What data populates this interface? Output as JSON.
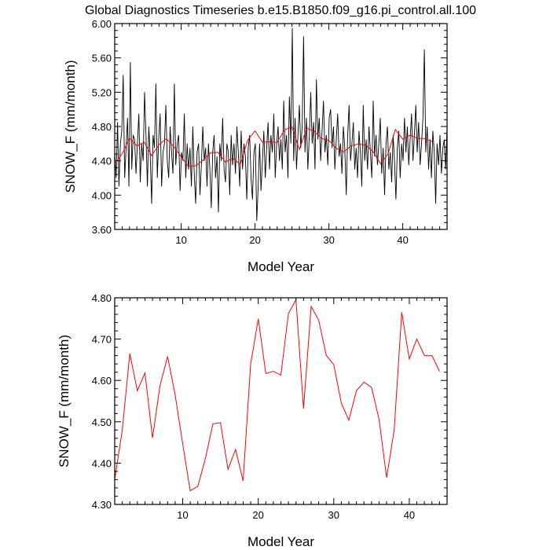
{
  "title": "Global Diagnostics Timeseries b.e15.B1850.f09_g16.pi_control.all.100",
  "colors": {
    "monthly": "#000000",
    "annual": "#ff0000"
  },
  "chart_data": [
    {
      "type": "line",
      "xlabel": "Model Year",
      "ylabel": "SNOW_F (mm/month)",
      "xlim": [
        1,
        46
      ],
      "ylim": [
        3.6,
        6.0
      ],
      "xticks": [
        "10",
        "20",
        "30",
        "40"
      ],
      "yticks": [
        "3.60",
        "4.00",
        "4.40",
        "4.80",
        "5.20",
        "5.60",
        "6.00"
      ],
      "series": [
        {
          "key": "monthly",
          "values": [
            4.5,
            4.2,
            4.85,
            4.1,
            4.6,
            4.75,
            5.4,
            4.2,
            4.55,
            4.9,
            4.1,
            5.55,
            4.3,
            4.7,
            4.65,
            4.25,
            4.6,
            4.95,
            4.15,
            4.6,
            4.4,
            5.2,
            4.7,
            4.1,
            4.8,
            4.45,
            3.9,
            4.7,
            4.55,
            5.3,
            4.2,
            4.65,
            4.95,
            4.1,
            4.5,
            4.6,
            5.05,
            4.4,
            4.2,
            4.8,
            4.5,
            4.25,
            5.3,
            4.35,
            4.6,
            4.7,
            4.05,
            4.5,
            4.4,
            4.95,
            4.2,
            4.6,
            4.3,
            4.55,
            4.1,
            4.8,
            4.25,
            3.9,
            4.5,
            4.6,
            4.0,
            4.35,
            4.8,
            4.4,
            4.55,
            4.1,
            4.6,
            4.3,
            3.85,
            4.5,
            4.7,
            4.2,
            4.45,
            3.8,
            4.6,
            4.4,
            4.9,
            4.3,
            4.15,
            4.6,
            4.5,
            4.0,
            4.7,
            4.35,
            4.6,
            4.25,
            4.8,
            4.5,
            4.1,
            4.75,
            4.3,
            4.6,
            4.45,
            3.95,
            4.55,
            4.7,
            4.2,
            3.95,
            4.5,
            4.6,
            3.7,
            4.1,
            4.6,
            4.05,
            4.4,
            4.75,
            4.2,
            4.55,
            4.85,
            4.3,
            4.7,
            4.5,
            4.95,
            4.2,
            4.6,
            4.8,
            4.4,
            4.65,
            4.3,
            5.1,
            4.5,
            4.7,
            4.2,
            5.15,
            4.6,
            5.95,
            4.4,
            4.9,
            4.3,
            4.7,
            5.05,
            4.55,
            4.8,
            5.85,
            4.5,
            4.9,
            4.3,
            4.7,
            5.2,
            4.6,
            4.85,
            4.3,
            5.35,
            4.65,
            4.9,
            4.4,
            4.75,
            5.1,
            4.5,
            4.7,
            4.35,
            4.9,
            5.0,
            4.55,
            4.8,
            4.3,
            4.65,
            4.95,
            4.45,
            4.6,
            4.25,
            4.8,
            4.55,
            4.0,
            4.7,
            5.05,
            4.4,
            4.6,
            4.85,
            4.3,
            4.55,
            4.2,
            4.75,
            4.5,
            4.1,
            5.05,
            4.4,
            4.65,
            4.3,
            4.8,
            4.5,
            4.2,
            5.1,
            4.45,
            4.7,
            4.35,
            4.6,
            4.9,
            4.25,
            4.55,
            4.0,
            4.6,
            4.8,
            4.3,
            4.5,
            4.15,
            4.7,
            4.4,
            3.95,
            4.55,
            4.75,
            4.2,
            4.6,
            4.4,
            4.9,
            4.5,
            4.8,
            4.35,
            4.65,
            4.95,
            4.4,
            4.7,
            5.05,
            4.5,
            4.85,
            4.35,
            4.6,
            4.9,
            5.7,
            4.5,
            4.8,
            4.3,
            4.65,
            4.2,
            4.75,
            4.5,
            3.9,
            4.6,
            4.35,
            4.7,
            4.25,
            4.55,
            4.65,
            4.3,
            4.8
          ]
        },
        {
          "key": "annual",
          "values": [
            4.36,
            4.48,
            4.665,
            4.575,
            4.618,
            4.461,
            4.588,
            4.658,
            4.565,
            4.447,
            4.333,
            4.344,
            4.411,
            4.495,
            4.498,
            4.385,
            4.433,
            4.357,
            4.64,
            4.749,
            4.617,
            4.622,
            4.613,
            4.762,
            4.795,
            4.532,
            4.779,
            4.746,
            4.661,
            4.638,
            4.545,
            4.504,
            4.575,
            4.596,
            4.583,
            4.505,
            4.365,
            4.48,
            4.765,
            4.652,
            4.7,
            4.66,
            4.66,
            4.622
          ]
        }
      ]
    },
    {
      "type": "line",
      "xlabel": "Model Year",
      "ylabel": "SNOW_F (mm/month)",
      "xlim": [
        1,
        45
      ],
      "ylim": [
        4.3,
        4.8
      ],
      "xticks": [
        "10",
        "20",
        "30",
        "40"
      ],
      "yticks": [
        "4.30",
        "4.40",
        "4.50",
        "4.60",
        "4.70",
        "4.80"
      ],
      "series": [
        {
          "key": "annual",
          "values": [
            4.36,
            4.48,
            4.665,
            4.575,
            4.618,
            4.461,
            4.588,
            4.658,
            4.565,
            4.447,
            4.333,
            4.344,
            4.411,
            4.495,
            4.498,
            4.385,
            4.433,
            4.357,
            4.64,
            4.749,
            4.617,
            4.622,
            4.613,
            4.762,
            4.795,
            4.532,
            4.779,
            4.746,
            4.661,
            4.638,
            4.545,
            4.504,
            4.575,
            4.596,
            4.583,
            4.505,
            4.365,
            4.48,
            4.765,
            4.652,
            4.7,
            4.66,
            4.66,
            4.622
          ]
        }
      ]
    }
  ]
}
